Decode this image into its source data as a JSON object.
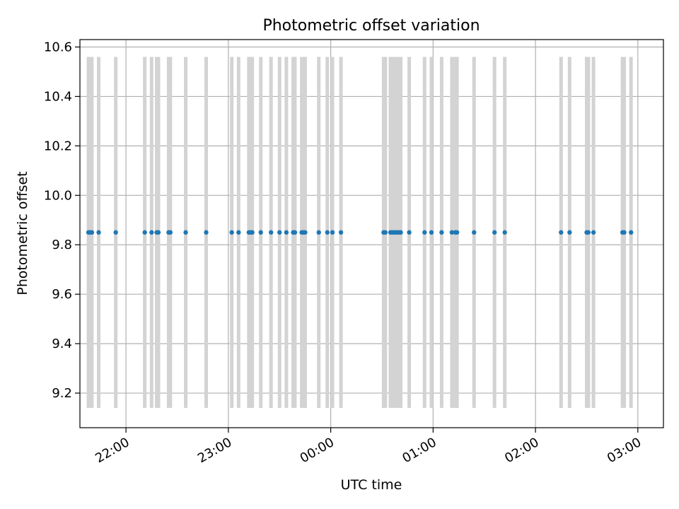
{
  "chart_data": {
    "type": "scatter",
    "title": "Photometric offset variation",
    "xlabel": "UTC time",
    "ylabel": "Photometric offset",
    "x_unit": "UTC hh:mm",
    "xlim": [
      "21:33",
      "03:15"
    ],
    "ylim": [
      9.06,
      10.63
    ],
    "xticks": [
      "22:00",
      "23:00",
      "00:00",
      "01:00",
      "02:00",
      "03:00"
    ],
    "yticks": [
      "9.2",
      "9.4",
      "9.6",
      "9.8",
      "10.0",
      "10.2",
      "10.4",
      "10.6"
    ],
    "grid": true,
    "error_bar_range": [
      9.14,
      10.56
    ],
    "error_bar_color": "#d3d3d3",
    "series": [
      {
        "marker_color": "#1f77b4",
        "points": [
          {
            "x": "21:38",
            "y": 9.85
          },
          {
            "x": "21:39",
            "y": 9.85
          },
          {
            "x": "21:40",
            "y": 9.85
          },
          {
            "x": "21:44",
            "y": 9.85
          },
          {
            "x": "21:54",
            "y": 9.85
          },
          {
            "x": "22:11",
            "y": 9.85
          },
          {
            "x": "22:15",
            "y": 9.85
          },
          {
            "x": "22:18",
            "y": 9.85
          },
          {
            "x": "22:19",
            "y": 9.85
          },
          {
            "x": "22:25",
            "y": 9.85
          },
          {
            "x": "22:26",
            "y": 9.85
          },
          {
            "x": "22:35",
            "y": 9.85
          },
          {
            "x": "22:47",
            "y": 9.85
          },
          {
            "x": "23:02",
            "y": 9.85
          },
          {
            "x": "23:06",
            "y": 9.85
          },
          {
            "x": "23:12",
            "y": 9.85
          },
          {
            "x": "23:13",
            "y": 9.85
          },
          {
            "x": "23:14",
            "y": 9.85
          },
          {
            "x": "23:19",
            "y": 9.85
          },
          {
            "x": "23:25",
            "y": 9.85
          },
          {
            "x": "23:30",
            "y": 9.85
          },
          {
            "x": "23:34",
            "y": 9.85
          },
          {
            "x": "23:38",
            "y": 9.85
          },
          {
            "x": "23:39",
            "y": 9.85
          },
          {
            "x": "23:43",
            "y": 9.85
          },
          {
            "x": "23:44",
            "y": 9.85
          },
          {
            "x": "23:45",
            "y": 9.85
          },
          {
            "x": "23:53",
            "y": 9.85
          },
          {
            "x": "23:58",
            "y": 9.85
          },
          {
            "x": "00:01",
            "y": 9.85
          },
          {
            "x": "00:06",
            "y": 9.85
          },
          {
            "x": "00:31",
            "y": 9.85
          },
          {
            "x": "00:32",
            "y": 9.85
          },
          {
            "x": "00:35",
            "y": 9.85
          },
          {
            "x": "00:36",
            "y": 9.85
          },
          {
            "x": "00:37",
            "y": 9.85
          },
          {
            "x": "00:38",
            "y": 9.85
          },
          {
            "x": "00:39",
            "y": 9.85
          },
          {
            "x": "00:40",
            "y": 9.85
          },
          {
            "x": "00:41",
            "y": 9.85
          },
          {
            "x": "00:46",
            "y": 9.85
          },
          {
            "x": "00:55",
            "y": 9.85
          },
          {
            "x": "00:59",
            "y": 9.85
          },
          {
            "x": "01:05",
            "y": 9.85
          },
          {
            "x": "01:11",
            "y": 9.85
          },
          {
            "x": "01:13",
            "y": 9.85
          },
          {
            "x": "01:14",
            "y": 9.85
          },
          {
            "x": "01:24",
            "y": 9.85
          },
          {
            "x": "01:36",
            "y": 9.85
          },
          {
            "x": "01:42",
            "y": 9.85
          },
          {
            "x": "02:15",
            "y": 9.85
          },
          {
            "x": "02:20",
            "y": 9.85
          },
          {
            "x": "02:30",
            "y": 9.85
          },
          {
            "x": "02:31",
            "y": 9.85
          },
          {
            "x": "02:34",
            "y": 9.85
          },
          {
            "x": "02:51",
            "y": 9.85
          },
          {
            "x": "02:52",
            "y": 9.85
          },
          {
            "x": "02:56",
            "y": 9.85
          }
        ]
      }
    ]
  }
}
